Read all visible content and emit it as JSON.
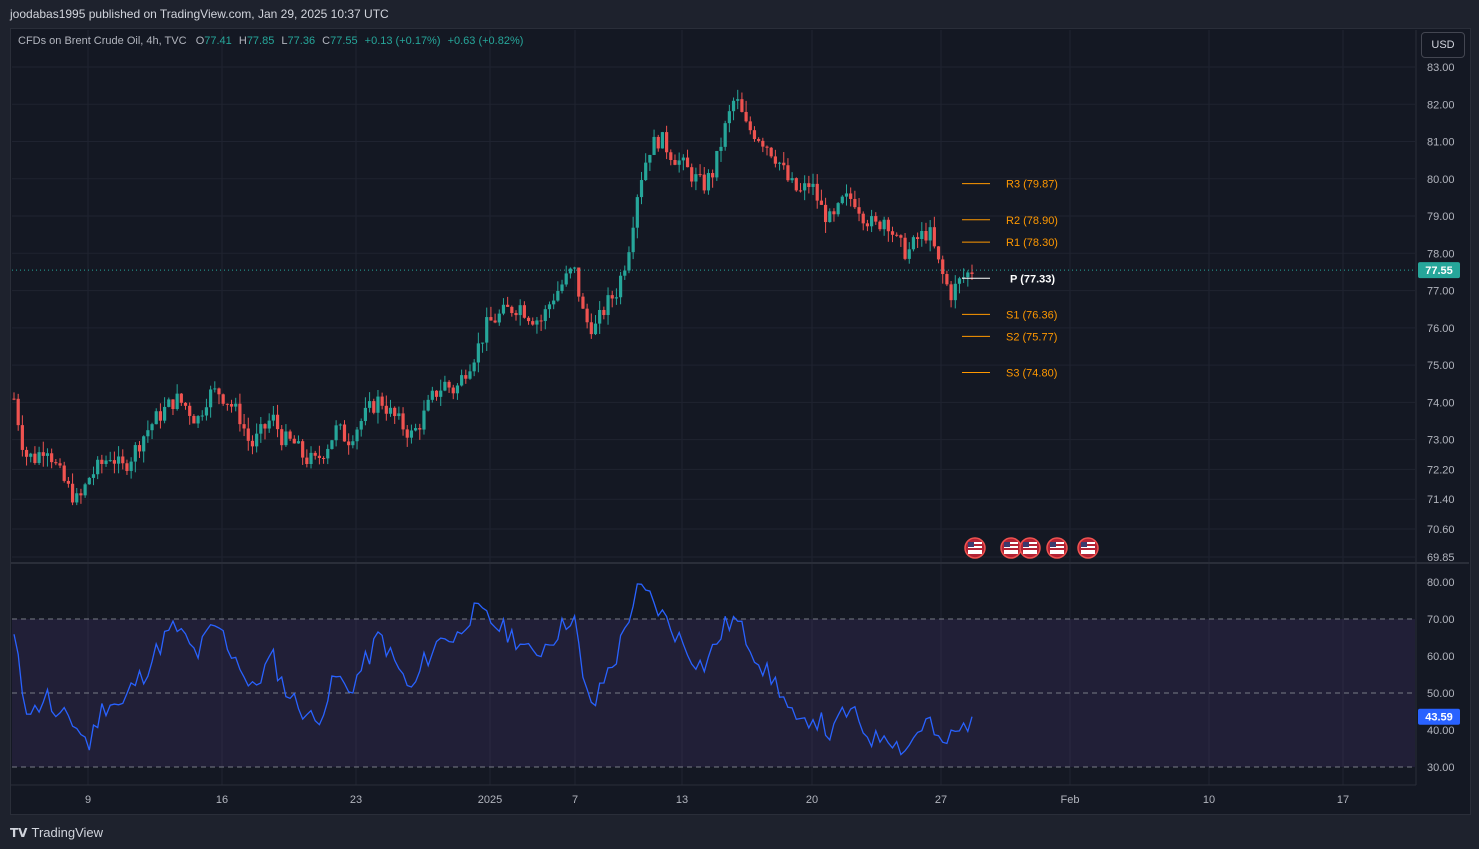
{
  "header": {
    "publish_text": "joodabas1995 published on TradingView.com, Jan 29, 2025 10:37 UTC"
  },
  "legend": {
    "symbol": "CFDs on Brent Crude Oil, 4h, TVC",
    "open_label": "O",
    "open": "77.41",
    "high_label": "H",
    "high": "77.85",
    "low_label": "L",
    "low": "77.36",
    "close_label": "C",
    "close": "77.55",
    "change": "+0.13 (+0.17%)",
    "change2": "+0.63 (+0.82%)"
  },
  "currency_button": "USD",
  "price_axis": {
    "ticks": [
      "83.00",
      "82.00",
      "81.00",
      "80.00",
      "79.00",
      "78.00",
      "77.00",
      "76.00",
      "75.00",
      "74.00",
      "73.00",
      "72.20",
      "71.40",
      "70.60",
      "69.85"
    ],
    "last_price": "77.55"
  },
  "rsi_axis": {
    "ticks": [
      "80.00",
      "70.00",
      "60.00",
      "50.00",
      "40.00",
      "30.00"
    ],
    "last_value": "43.59"
  },
  "time_axis": [
    "9",
    "16",
    "23",
    "2025",
    "7",
    "13",
    "20",
    "27",
    "Feb",
    "10",
    "17"
  ],
  "pivots": [
    {
      "name": "R3",
      "label": "R3 (79.87)",
      "value": 79.87
    },
    {
      "name": "R2",
      "label": "R2 (78.90)",
      "value": 78.9
    },
    {
      "name": "R1",
      "label": "R1 (78.30)",
      "value": 78.3
    },
    {
      "name": "P",
      "label": "P (77.33)",
      "value": 77.33
    },
    {
      "name": "S1",
      "label": "S1 (76.36)",
      "value": 76.36
    },
    {
      "name": "S2",
      "label": "S2 (75.77)",
      "value": 75.77
    },
    {
      "name": "S3",
      "label": "S3 (74.80)",
      "value": 74.8
    }
  ],
  "colors": {
    "up": "#26a69a",
    "down": "#ef5350",
    "rsi": "#2962ff",
    "pivot": "#ff9800",
    "pivot_p": "#ffffff",
    "background": "#141823"
  },
  "footer": {
    "brand": "TradingView"
  },
  "chart_data": [
    {
      "type": "candlestick",
      "symbol": "Brent Crude Oil 4h",
      "ylim": [
        69.85,
        83.0
      ],
      "close_path": [
        74.1,
        72.6,
        72.5,
        72.9,
        72.2,
        71.7,
        71.3,
        72.0,
        72.3,
        72.6,
        72.2,
        72.6,
        73.1,
        73.5,
        73.8,
        74.1,
        73.9,
        73.5,
        74.2,
        74.3,
        74.0,
        73.6,
        72.8,
        73.2,
        73.6,
        73.0,
        72.9,
        72.5,
        72.4,
        72.8,
        73.3,
        73.0,
        73.4,
        73.8,
        74.1,
        73.7,
        73.4,
        73.1,
        73.6,
        74.2,
        74.5,
        74.3,
        74.9,
        75.4,
        76.1,
        76.3,
        76.5,
        76.6,
        76.3,
        76.2,
        76.8,
        77.2,
        77.6,
        76.2,
        76.0,
        76.6,
        77.0,
        78.0,
        79.8,
        80.8,
        81.1,
        80.7,
        80.4,
        80.1,
        79.8,
        80.2,
        81.3,
        82.2,
        81.4,
        81.2,
        80.9,
        80.5,
        79.9,
        79.6,
        79.9,
        79.2,
        78.8,
        79.4,
        79.5,
        79.0,
        78.7,
        79.0,
        78.3,
        78.0,
        78.4,
        78.6,
        77.6,
        76.9,
        77.3,
        77.55
      ],
      "rsi_path": [
        65,
        47,
        45,
        50,
        42,
        44,
        40,
        36,
        45,
        48,
        46,
        52,
        55,
        60,
        65,
        68,
        64,
        60,
        66,
        68,
        62,
        58,
        50,
        55,
        60,
        52,
        48,
        45,
        42,
        48,
        55,
        50,
        55,
        60,
        66,
        60,
        55,
        50,
        58,
        62,
        66,
        64,
        70,
        72,
        70,
        68,
        66,
        64,
        60,
        62,
        65,
        68,
        72,
        50,
        47,
        55,
        60,
        70,
        78,
        76,
        72,
        68,
        64,
        60,
        57,
        62,
        68,
        70,
        65,
        60,
        55,
        52,
        45,
        40,
        44,
        42,
        38,
        45,
        44,
        40,
        37,
        40,
        36,
        35,
        40,
        43,
        35,
        38,
        40,
        43.59
      ],
      "rsi_ylim": [
        30,
        80
      ],
      "rsi_levels": [
        70,
        50,
        30
      ]
    }
  ]
}
